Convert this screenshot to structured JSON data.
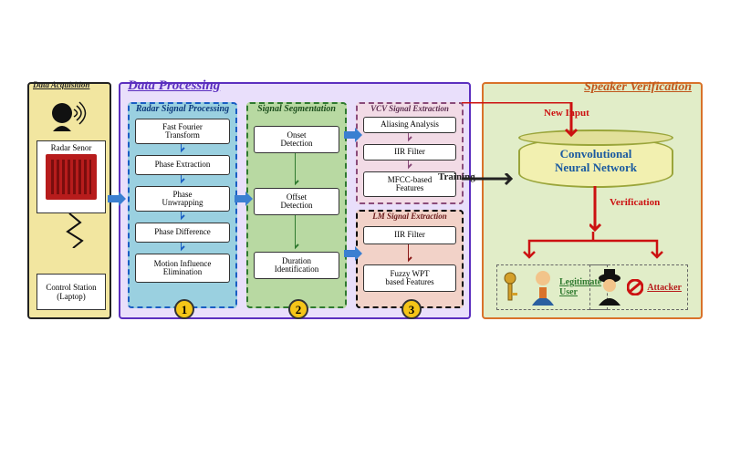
{
  "sections": {
    "acquisition": {
      "title": "Data Acquisition",
      "radar_label": "Radar Senor",
      "control_label": "Control Station",
      "control_sub": "(Laptop)"
    },
    "processing": {
      "title": "Data Processing"
    },
    "verification": {
      "title": "Speaker Verification"
    }
  },
  "col1": {
    "title": "Radar Signal Processing",
    "n1": "Fast Fourier\nTransform",
    "n2": "Phase Extraction",
    "n3": "Phase\nUnwrapping",
    "n4": "Phase Difference",
    "n5": "Motion Influence\nElimination"
  },
  "col2": {
    "title": "Signal Segmentation",
    "n1": "Onset\nDetection",
    "n2": "Offset\nDetection",
    "n3": "Duration\nIdentification"
  },
  "col3a": {
    "title": "VCV Signal Extraction",
    "n1": "Aliasing Analysis",
    "n2": "IIR Filter",
    "n3": "MFCC-based\nFeatures"
  },
  "col3b": {
    "title": "LM Signal Extraction",
    "n1": "IIR Filter",
    "n2": "Fuzzy WPT\nbased Features"
  },
  "badges": {
    "b1": "1",
    "b2": "2",
    "b3": "3"
  },
  "ver": {
    "cnn_l1": "Convolutional",
    "cnn_l2": "Neural Network",
    "new_input": "New Input",
    "training": "Training",
    "verification": "Verification",
    "legit": "Legitimate\nUser",
    "attacker": "Attacker"
  },
  "colors": {
    "acq_bg": "#f2e6a0",
    "proc_bg": "#e9dffb",
    "ver_bg": "#e1edc8",
    "proc_border": "#5b2fbf",
    "ver_border": "#d9722a",
    "blue_arrow": "#3b7fd1",
    "red_arrow": "#cc1111",
    "dark_arrow": "#222",
    "badge_bg": "#f5c518"
  }
}
